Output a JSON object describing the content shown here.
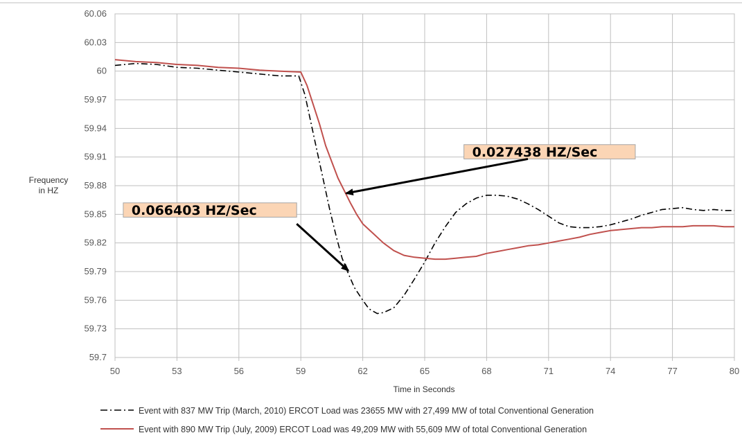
{
  "chart_data": {
    "type": "line",
    "title": "",
    "xlabel": "Time in Seconds",
    "ylabel": "Frequency in HZ",
    "ylabel_lines": [
      "Frequency",
      "in HZ"
    ],
    "xlim": [
      50,
      80
    ],
    "ylim": [
      59.7,
      60.06
    ],
    "x_ticks": [
      50,
      53,
      56,
      59,
      62,
      65,
      68,
      71,
      74,
      77,
      80
    ],
    "y_ticks": [
      59.7,
      59.73,
      59.76,
      59.79,
      59.82,
      59.85,
      59.88,
      59.91,
      59.94,
      59.97,
      60,
      60.03,
      60.06
    ],
    "grid": true,
    "legend_position": "bottom",
    "series": [
      {
        "name": "Event with 837 MW Trip (March, 2010) ERCOT Load was 23655 MW with 27,499 MW of total Conventional Generation",
        "color": "#000000",
        "style": "dashdot",
        "points": [
          [
            50,
            60.006
          ],
          [
            51,
            60.008
          ],
          [
            52,
            60.007
          ],
          [
            53,
            60.004
          ],
          [
            54,
            60.003
          ],
          [
            55,
            60.001
          ],
          [
            56,
            59.999
          ],
          [
            57,
            59.997
          ],
          [
            58,
            59.995
          ],
          [
            58.9,
            59.995
          ],
          [
            59.2,
            59.975
          ],
          [
            59.5,
            59.945
          ],
          [
            59.8,
            59.915
          ],
          [
            60.1,
            59.885
          ],
          [
            60.4,
            59.855
          ],
          [
            60.7,
            59.828
          ],
          [
            61.0,
            59.804
          ],
          [
            61.3,
            59.788
          ],
          [
            61.6,
            59.773
          ],
          [
            62.0,
            59.76
          ],
          [
            62.3,
            59.751
          ],
          [
            62.7,
            59.746
          ],
          [
            63.0,
            59.747
          ],
          [
            63.5,
            59.752
          ],
          [
            64.0,
            59.765
          ],
          [
            64.5,
            59.782
          ],
          [
            65.0,
            59.8
          ],
          [
            65.5,
            59.82
          ],
          [
            66.0,
            59.837
          ],
          [
            66.5,
            59.852
          ],
          [
            67.0,
            59.861
          ],
          [
            67.5,
            59.867
          ],
          [
            68.0,
            59.87
          ],
          [
            68.5,
            59.87
          ],
          [
            69.0,
            59.869
          ],
          [
            69.5,
            59.866
          ],
          [
            70.0,
            59.861
          ],
          [
            70.5,
            59.855
          ],
          [
            71.0,
            59.848
          ],
          [
            71.5,
            59.841
          ],
          [
            72.0,
            59.837
          ],
          [
            72.5,
            59.836
          ],
          [
            73.0,
            59.836
          ],
          [
            73.5,
            59.837
          ],
          [
            74.0,
            59.839
          ],
          [
            74.5,
            59.842
          ],
          [
            75.0,
            59.845
          ],
          [
            75.5,
            59.849
          ],
          [
            76.0,
            59.852
          ],
          [
            76.5,
            59.855
          ],
          [
            77.0,
            59.856
          ],
          [
            77.5,
            59.857
          ],
          [
            78.0,
            59.855
          ],
          [
            78.5,
            59.854
          ],
          [
            79.0,
            59.855
          ],
          [
            79.5,
            59.854
          ],
          [
            80.0,
            59.854
          ]
        ]
      },
      {
        "name": "Event with 890 MW Trip (July, 2009) ERCOT Load was 49,209 MW with 55,609 MW of total Conventional Generation",
        "color": "#c0504d",
        "style": "solid",
        "points": [
          [
            50,
            60.012
          ],
          [
            51,
            60.01
          ],
          [
            52,
            60.009
          ],
          [
            53,
            60.007
          ],
          [
            54,
            60.006
          ],
          [
            55,
            60.004
          ],
          [
            56,
            60.003
          ],
          [
            57,
            60.001
          ],
          [
            58,
            60.0
          ],
          [
            59.0,
            59.999
          ],
          [
            59.3,
            59.985
          ],
          [
            59.6,
            59.965
          ],
          [
            59.9,
            59.945
          ],
          [
            60.2,
            59.922
          ],
          [
            60.5,
            59.905
          ],
          [
            60.8,
            59.888
          ],
          [
            61.1,
            59.875
          ],
          [
            61.4,
            59.862
          ],
          [
            61.7,
            59.85
          ],
          [
            62.0,
            59.84
          ],
          [
            62.5,
            59.83
          ],
          [
            63.0,
            59.82
          ],
          [
            63.5,
            59.812
          ],
          [
            64.0,
            59.807
          ],
          [
            64.5,
            59.805
          ],
          [
            65.0,
            59.804
          ],
          [
            65.5,
            59.803
          ],
          [
            66.0,
            59.803
          ],
          [
            66.5,
            59.804
          ],
          [
            67.0,
            59.805
          ],
          [
            67.5,
            59.806
          ],
          [
            68.0,
            59.809
          ],
          [
            68.5,
            59.811
          ],
          [
            69.0,
            59.813
          ],
          [
            69.5,
            59.815
          ],
          [
            70.0,
            59.817
          ],
          [
            70.5,
            59.818
          ],
          [
            71.0,
            59.82
          ],
          [
            71.5,
            59.822
          ],
          [
            72.0,
            59.824
          ],
          [
            72.5,
            59.826
          ],
          [
            73.0,
            59.829
          ],
          [
            73.5,
            59.831
          ],
          [
            74.0,
            59.833
          ],
          [
            74.5,
            59.834
          ],
          [
            75.0,
            59.835
          ],
          [
            75.5,
            59.836
          ],
          [
            76.0,
            59.836
          ],
          [
            76.5,
            59.837
          ],
          [
            77.0,
            59.837
          ],
          [
            77.5,
            59.837
          ],
          [
            78.0,
            59.838
          ],
          [
            78.5,
            59.838
          ],
          [
            79.0,
            59.838
          ],
          [
            79.5,
            59.837
          ],
          [
            80.0,
            59.837
          ]
        ]
      }
    ],
    "annotations": [
      {
        "text": "0.027438 HZ/Sec",
        "box_top_left": [
          66.9,
          59.923
        ],
        "box_bottom_right": [
          75.2,
          59.908
        ],
        "arrow_from": [
          70.0,
          59.908
        ],
        "arrow_to": [
          61.2,
          59.872
        ],
        "box_fill": "#fbd5b5"
      },
      {
        "text": "0.066403 HZ/Sec",
        "box_top_left": [
          50.4,
          59.862
        ],
        "box_bottom_right": [
          58.8,
          59.847
        ],
        "arrow_from": [
          58.8,
          59.84
        ],
        "arrow_to": [
          61.3,
          59.791
        ],
        "box_fill": "#fbd5b5"
      }
    ]
  }
}
